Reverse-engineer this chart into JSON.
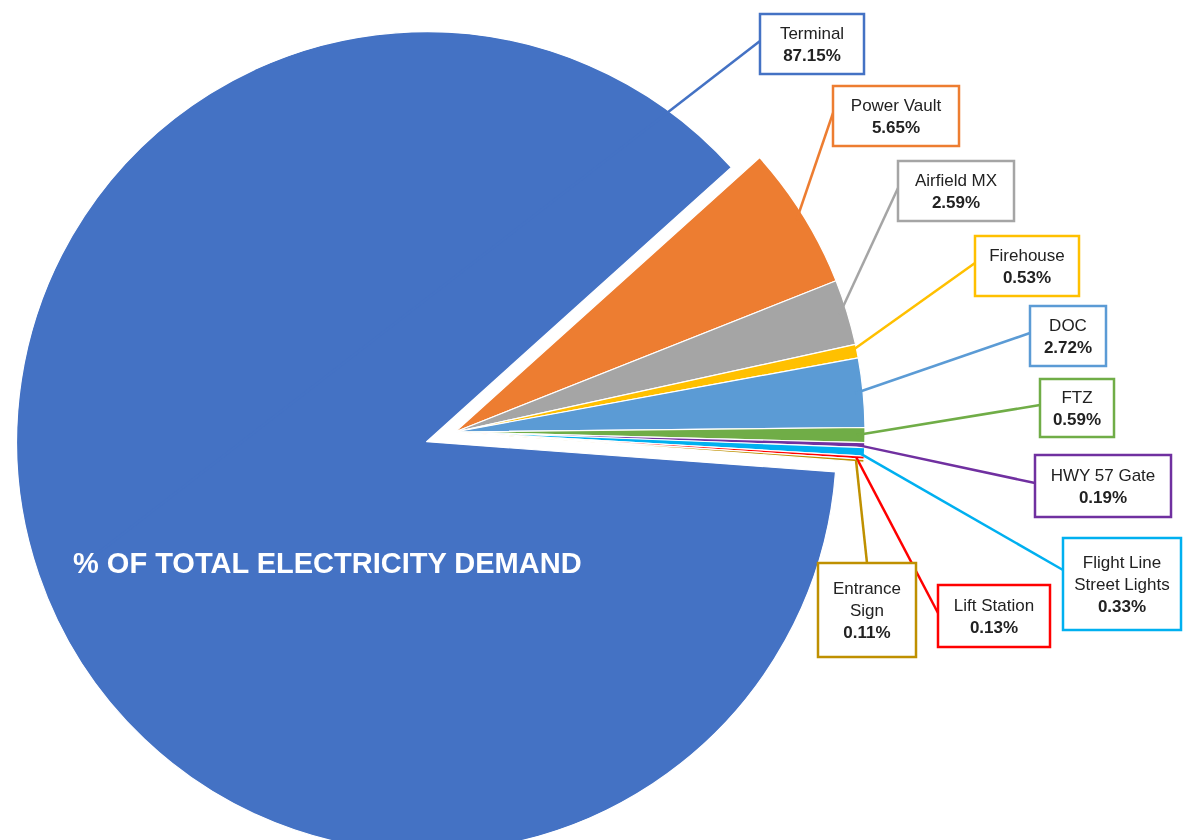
{
  "chart_data": {
    "type": "pie",
    "title": "% OF TOTAL ELECTRICITY DEMAND",
    "categories": [
      "Terminal",
      "Power Vault",
      "Airfield MX",
      "Firehouse",
      "DOC",
      "FTZ",
      "HWY 57 Gate",
      "Flight Line Street Lights",
      "Lift Station",
      "Entrance Sign"
    ],
    "values": [
      87.15,
      5.65,
      2.59,
      0.53,
      2.72,
      0.59,
      0.19,
      0.33,
      0.13,
      0.11
    ],
    "value_labels": [
      "87.15%",
      "5.65%",
      "2.59%",
      "0.53%",
      "2.72%",
      "0.59%",
      "0.19%",
      "0.33%",
      "0.13%",
      "0.11%"
    ],
    "colors": [
      "#4472c4",
      "#ed7d31",
      "#a5a5a5",
      "#ffc000",
      "#5b9bd5",
      "#70ad47",
      "#7030a0",
      "#00b0f0",
      "#ff0000",
      "#bf9000"
    ]
  }
}
